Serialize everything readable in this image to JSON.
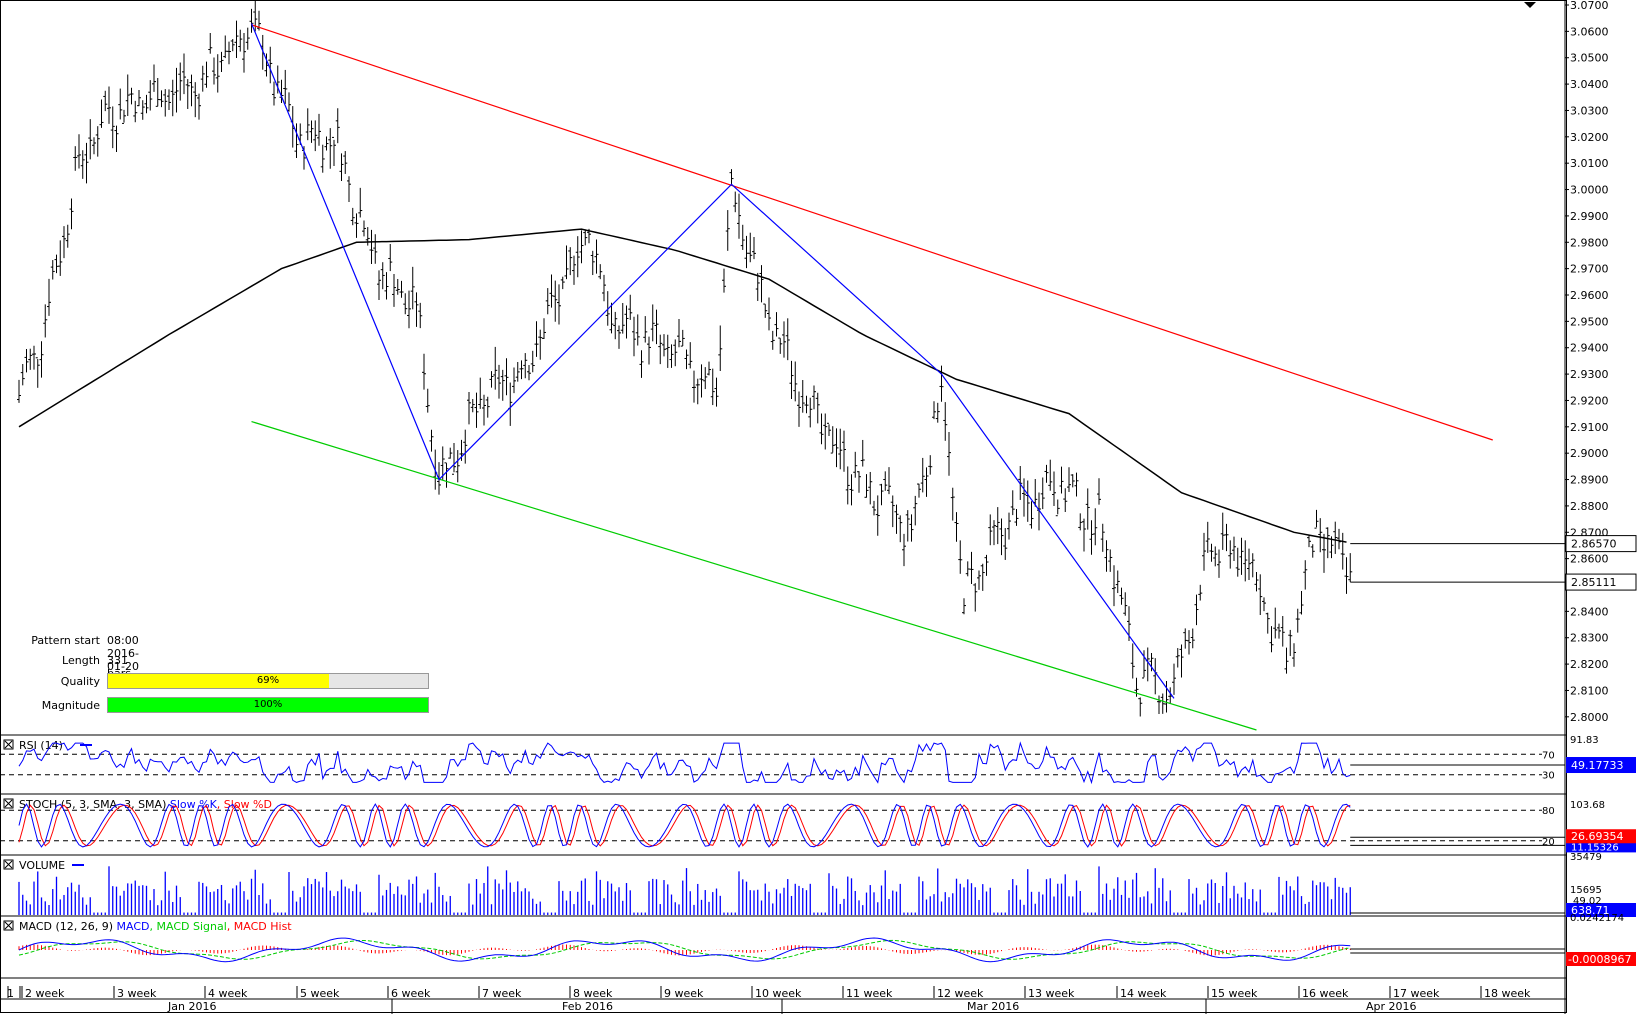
{
  "colors": {
    "price": "#000000",
    "ma": "#000000",
    "resistance": "#ff0000",
    "support": "#00cc00",
    "zigzag": "#0000ff",
    "rsi": "#0000ff",
    "stoch_k": "#0000ff",
    "stoch_d": "#ff0000",
    "volume": "#0000ff",
    "macd": "#0000ff",
    "macd_signal": "#00cc00",
    "macd_hist": "#ff0000",
    "quality_fill": "#ffff00",
    "magnitude_fill": "#00ff00",
    "current_label_bg": "#ffffff",
    "rsi_label_bg": "#0000ff",
    "stoch_label_bg": "#ff0000",
    "macd_label_bg": "#ff0000"
  },
  "pattern": {
    "start_label": "Pattern start",
    "start_value": "08:00 2016-01-20",
    "length_label": "Length",
    "length_value": "331 bars",
    "quality_label": "Quality",
    "quality_value": "69%",
    "quality_fraction": 0.69,
    "magnitude_label": "Magnitude",
    "magnitude_value": "100%",
    "magnitude_fraction": 1.0
  },
  "chart_data": {
    "type": "line",
    "price_axis": {
      "ylim": [
        2.795,
        3.07
      ],
      "ticks": [
        "3.0700",
        "3.0600",
        "3.0500",
        "3.0400",
        "3.0300",
        "3.0200",
        "3.0100",
        "3.0000",
        "2.9900",
        "2.9800",
        "2.9700",
        "2.9600",
        "2.9500",
        "2.9400",
        "2.9300",
        "2.9200",
        "2.9100",
        "2.9000",
        "2.8900",
        "2.8800",
        "2.8700",
        "2.8600",
        "2.8500",
        "2.8400",
        "2.8300",
        "2.8200",
        "2.8100",
        "2.8000"
      ],
      "labels": [
        "2.86570",
        "2.85111"
      ]
    },
    "week_labels": [
      "1",
      "2 week",
      "3 week",
      "4 week",
      "5 week",
      "6 week",
      "7 week",
      "8 week",
      "9 week",
      "10 week",
      "11 week",
      "12 week",
      "13 week",
      "14 week",
      "15 week",
      "16 week",
      "17 week",
      "18 week"
    ],
    "month_labels": [
      "Jan 2016",
      "Feb 2016",
      "Mar 2016",
      "Apr 2016"
    ],
    "price_anchors": [
      {
        "bar": 0,
        "price": 2.922
      },
      {
        "bar": 6,
        "price": 2.945
      },
      {
        "bar": 16,
        "price": 3.01
      },
      {
        "bar": 24,
        "price": 3.03
      },
      {
        "bar": 36,
        "price": 3.035
      },
      {
        "bar": 48,
        "price": 3.04
      },
      {
        "bar": 58,
        "price": 3.055
      },
      {
        "bar": 62,
        "price": 3.063
      },
      {
        "bar": 74,
        "price": 3.02
      },
      {
        "bar": 84,
        "price": 3.02
      },
      {
        "bar": 96,
        "price": 2.97
      },
      {
        "bar": 106,
        "price": 2.955
      },
      {
        "bar": 112,
        "price": 2.89
      },
      {
        "bar": 124,
        "price": 2.92
      },
      {
        "bar": 136,
        "price": 2.935
      },
      {
        "bar": 152,
        "price": 2.985
      },
      {
        "bar": 158,
        "price": 2.95
      },
      {
        "bar": 172,
        "price": 2.94
      },
      {
        "bar": 186,
        "price": 2.925
      },
      {
        "bar": 190,
        "price": 3.0
      },
      {
        "bar": 200,
        "price": 2.95
      },
      {
        "bar": 214,
        "price": 2.91
      },
      {
        "bar": 224,
        "price": 2.89
      },
      {
        "bar": 238,
        "price": 2.87
      },
      {
        "bar": 246,
        "price": 2.925
      },
      {
        "bar": 252,
        "price": 2.845
      },
      {
        "bar": 264,
        "price": 2.875
      },
      {
        "bar": 276,
        "price": 2.89
      },
      {
        "bar": 290,
        "price": 2.87
      },
      {
        "bar": 298,
        "price": 2.815
      },
      {
        "bar": 308,
        "price": 2.81
      },
      {
        "bar": 318,
        "price": 2.865
      },
      {
        "bar": 328,
        "price": 2.86
      },
      {
        "bar": 338,
        "price": 2.82
      },
      {
        "bar": 346,
        "price": 2.87
      },
      {
        "bar": 355,
        "price": 2.855
      }
    ],
    "ma_anchors": [
      {
        "bar": 0,
        "price": 2.91
      },
      {
        "bar": 40,
        "price": 2.945
      },
      {
        "bar": 70,
        "price": 2.97
      },
      {
        "bar": 90,
        "price": 2.98
      },
      {
        "bar": 120,
        "price": 2.981
      },
      {
        "bar": 150,
        "price": 2.985
      },
      {
        "bar": 175,
        "price": 2.977
      },
      {
        "bar": 200,
        "price": 2.966
      },
      {
        "bar": 225,
        "price": 2.945
      },
      {
        "bar": 250,
        "price": 2.928
      },
      {
        "bar": 280,
        "price": 2.915
      },
      {
        "bar": 310,
        "price": 2.885
      },
      {
        "bar": 340,
        "price": 2.87
      },
      {
        "bar": 355,
        "price": 2.866
      }
    ],
    "trendlines": [
      {
        "name": "resistance",
        "from": {
          "bar": 62,
          "price": 3.0625
        },
        "to": {
          "bar": 393,
          "price": 2.905
        }
      },
      {
        "name": "support",
        "from": {
          "bar": 62,
          "price": 2.912
        },
        "to": {
          "bar": 330,
          "price": 2.795
        }
      }
    ],
    "zigzag": [
      {
        "bar": 62,
        "price": 3.063
      },
      {
        "bar": 112,
        "price": 2.89
      },
      {
        "bar": 190,
        "price": 3.002
      },
      {
        "bar": 308,
        "price": 2.807
      },
      {
        "bar": 246,
        "price": 2.93
      }
    ],
    "zigzag_order": [
      0,
      1,
      2,
      4,
      3
    ],
    "indicators": {
      "rsi": {
        "title": "RSI (14)",
        "levels": [
          "70",
          "30"
        ],
        "max_label": "91.83",
        "current": "49.17733"
      },
      "stoch": {
        "title": "STOCH (5, 3, SMA, 3, SMA)",
        "series_k": "Slow %K",
        "series_d": "Slow %D",
        "levels": [
          "80",
          "20"
        ],
        "max_label": "103.68",
        "current": "26.69354",
        "current_2": "11.15326"
      },
      "volume": {
        "title": "VOLUME",
        "max_label": "35479",
        "mid_label": "15695",
        "current": "638.71"
      },
      "macd": {
        "title": "MACD (12, 26, 9)",
        "series_macd": "MACD",
        "series_signal": "MACD Signal",
        "series_hist": "MACD Hist",
        "max_label": "0.0242174",
        "mid_label": "49.02",
        "current": "-0.0008967"
      }
    }
  }
}
